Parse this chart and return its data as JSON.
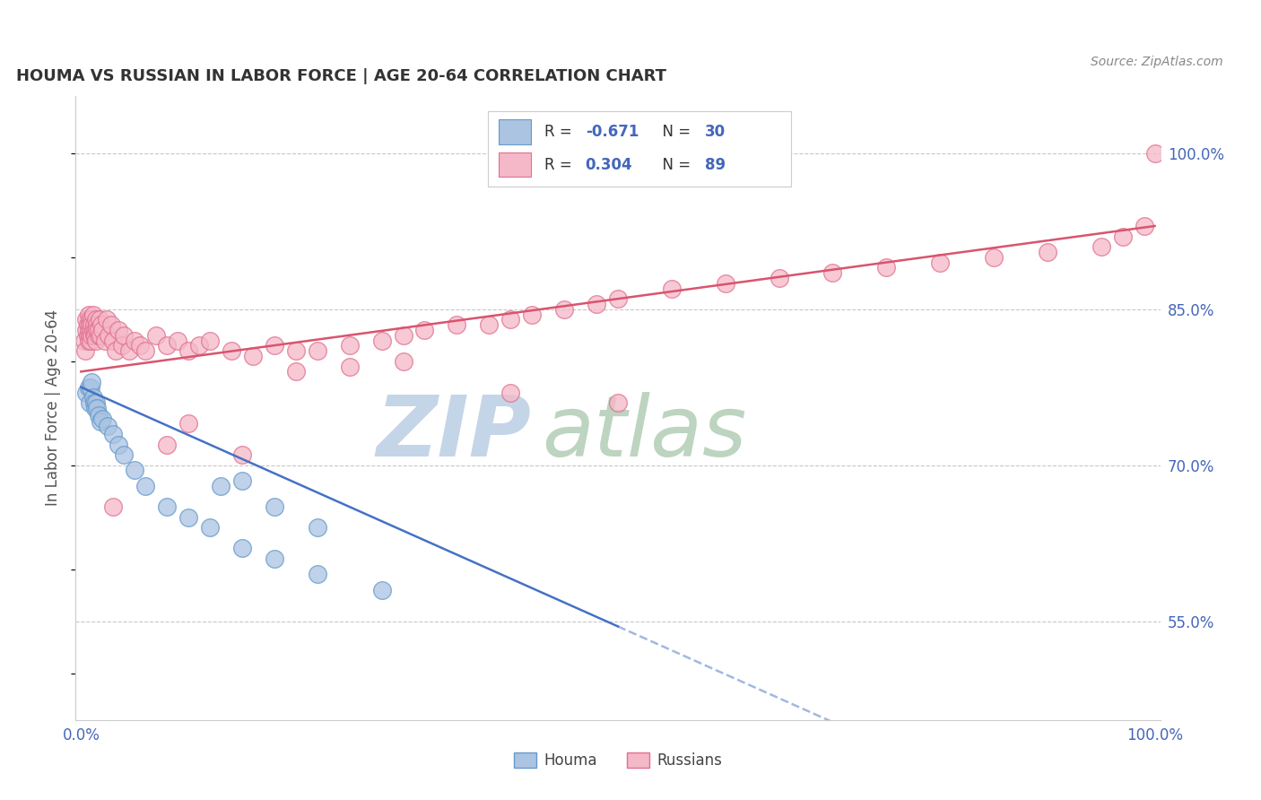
{
  "title": "HOUMA VS RUSSIAN IN LABOR FORCE | AGE 20-64 CORRELATION CHART",
  "ylabel": "In Labor Force | Age 20-64",
  "source_text": "Source: ZipAtlas.com",
  "xlim": [
    -0.005,
    1.005
  ],
  "ylim": [
    0.455,
    1.055
  ],
  "y_ticks_right": [
    0.55,
    0.7,
    0.85,
    1.0
  ],
  "y_tick_labels_right": [
    "55.0%",
    "70.0%",
    "85.0%",
    "100.0%"
  ],
  "legend_r_houma": "-0.671",
  "legend_n_houma": "30",
  "legend_r_russian": "0.304",
  "legend_n_russian": "89",
  "houma_color": "#aac4e2",
  "houma_edge_color": "#6699cc",
  "russian_color": "#f5b8c8",
  "russian_edge_color": "#e07090",
  "trend_houma_color": "#4472c4",
  "trend_russian_color": "#d9546e",
  "watermark_zip_color": "#c8d8ea",
  "watermark_atlas_color": "#c8d8c8",
  "background_color": "#ffffff",
  "grid_color": "#c8c8c8",
  "houma_x": [
    0.005,
    0.007,
    0.008,
    0.009,
    0.01,
    0.011,
    0.012,
    0.013,
    0.014,
    0.015,
    0.016,
    0.018,
    0.02,
    0.025,
    0.03,
    0.035,
    0.04,
    0.05,
    0.06,
    0.08,
    0.1,
    0.12,
    0.15,
    0.18,
    0.22,
    0.28,
    0.22,
    0.18,
    0.15,
    0.13
  ],
  "houma_y": [
    0.77,
    0.775,
    0.76,
    0.775,
    0.78,
    0.765,
    0.76,
    0.755,
    0.76,
    0.755,
    0.748,
    0.742,
    0.745,
    0.738,
    0.73,
    0.72,
    0.71,
    0.695,
    0.68,
    0.66,
    0.65,
    0.64,
    0.62,
    0.61,
    0.595,
    0.58,
    0.64,
    0.66,
    0.685,
    0.68
  ],
  "russian_x": [
    0.003,
    0.004,
    0.005,
    0.005,
    0.006,
    0.006,
    0.007,
    0.007,
    0.007,
    0.008,
    0.008,
    0.008,
    0.009,
    0.009,
    0.01,
    0.01,
    0.01,
    0.011,
    0.011,
    0.012,
    0.012,
    0.013,
    0.013,
    0.014,
    0.014,
    0.015,
    0.015,
    0.016,
    0.016,
    0.017,
    0.018,
    0.019,
    0.02,
    0.022,
    0.024,
    0.026,
    0.028,
    0.03,
    0.032,
    0.035,
    0.038,
    0.04,
    0.045,
    0.05,
    0.055,
    0.06,
    0.07,
    0.08,
    0.09,
    0.1,
    0.11,
    0.12,
    0.14,
    0.16,
    0.18,
    0.2,
    0.22,
    0.25,
    0.28,
    0.3,
    0.32,
    0.35,
    0.38,
    0.4,
    0.42,
    0.45,
    0.48,
    0.5,
    0.55,
    0.6,
    0.65,
    0.7,
    0.75,
    0.8,
    0.85,
    0.9,
    0.95,
    0.97,
    0.99,
    1.0,
    0.2,
    0.25,
    0.3,
    0.1,
    0.4,
    0.5,
    0.15,
    0.08,
    0.03
  ],
  "russian_y": [
    0.82,
    0.81,
    0.84,
    0.83,
    0.835,
    0.825,
    0.845,
    0.83,
    0.82,
    0.84,
    0.835,
    0.825,
    0.83,
    0.82,
    0.84,
    0.835,
    0.825,
    0.83,
    0.845,
    0.825,
    0.835,
    0.83,
    0.825,
    0.84,
    0.82,
    0.835,
    0.83,
    0.825,
    0.83,
    0.84,
    0.825,
    0.835,
    0.83,
    0.82,
    0.84,
    0.825,
    0.835,
    0.82,
    0.81,
    0.83,
    0.815,
    0.825,
    0.81,
    0.82,
    0.815,
    0.81,
    0.825,
    0.815,
    0.82,
    0.81,
    0.815,
    0.82,
    0.81,
    0.805,
    0.815,
    0.81,
    0.81,
    0.815,
    0.82,
    0.825,
    0.83,
    0.835,
    0.835,
    0.84,
    0.845,
    0.85,
    0.855,
    0.86,
    0.87,
    0.875,
    0.88,
    0.885,
    0.89,
    0.895,
    0.9,
    0.905,
    0.91,
    0.92,
    0.93,
    1.0,
    0.79,
    0.795,
    0.8,
    0.74,
    0.77,
    0.76,
    0.71,
    0.72,
    0.66
  ],
  "trend_houma_x_start": 0.0,
  "trend_houma_x_solid_end": 0.5,
  "trend_houma_x_end": 1.0,
  "trend_houma_y_start": 0.775,
  "trend_houma_y_at_solid_end": 0.545,
  "trend_houma_y_end": 0.315,
  "trend_russian_x_start": 0.0,
  "trend_russian_x_end": 1.0,
  "trend_russian_y_start": 0.79,
  "trend_russian_y_end": 0.93
}
